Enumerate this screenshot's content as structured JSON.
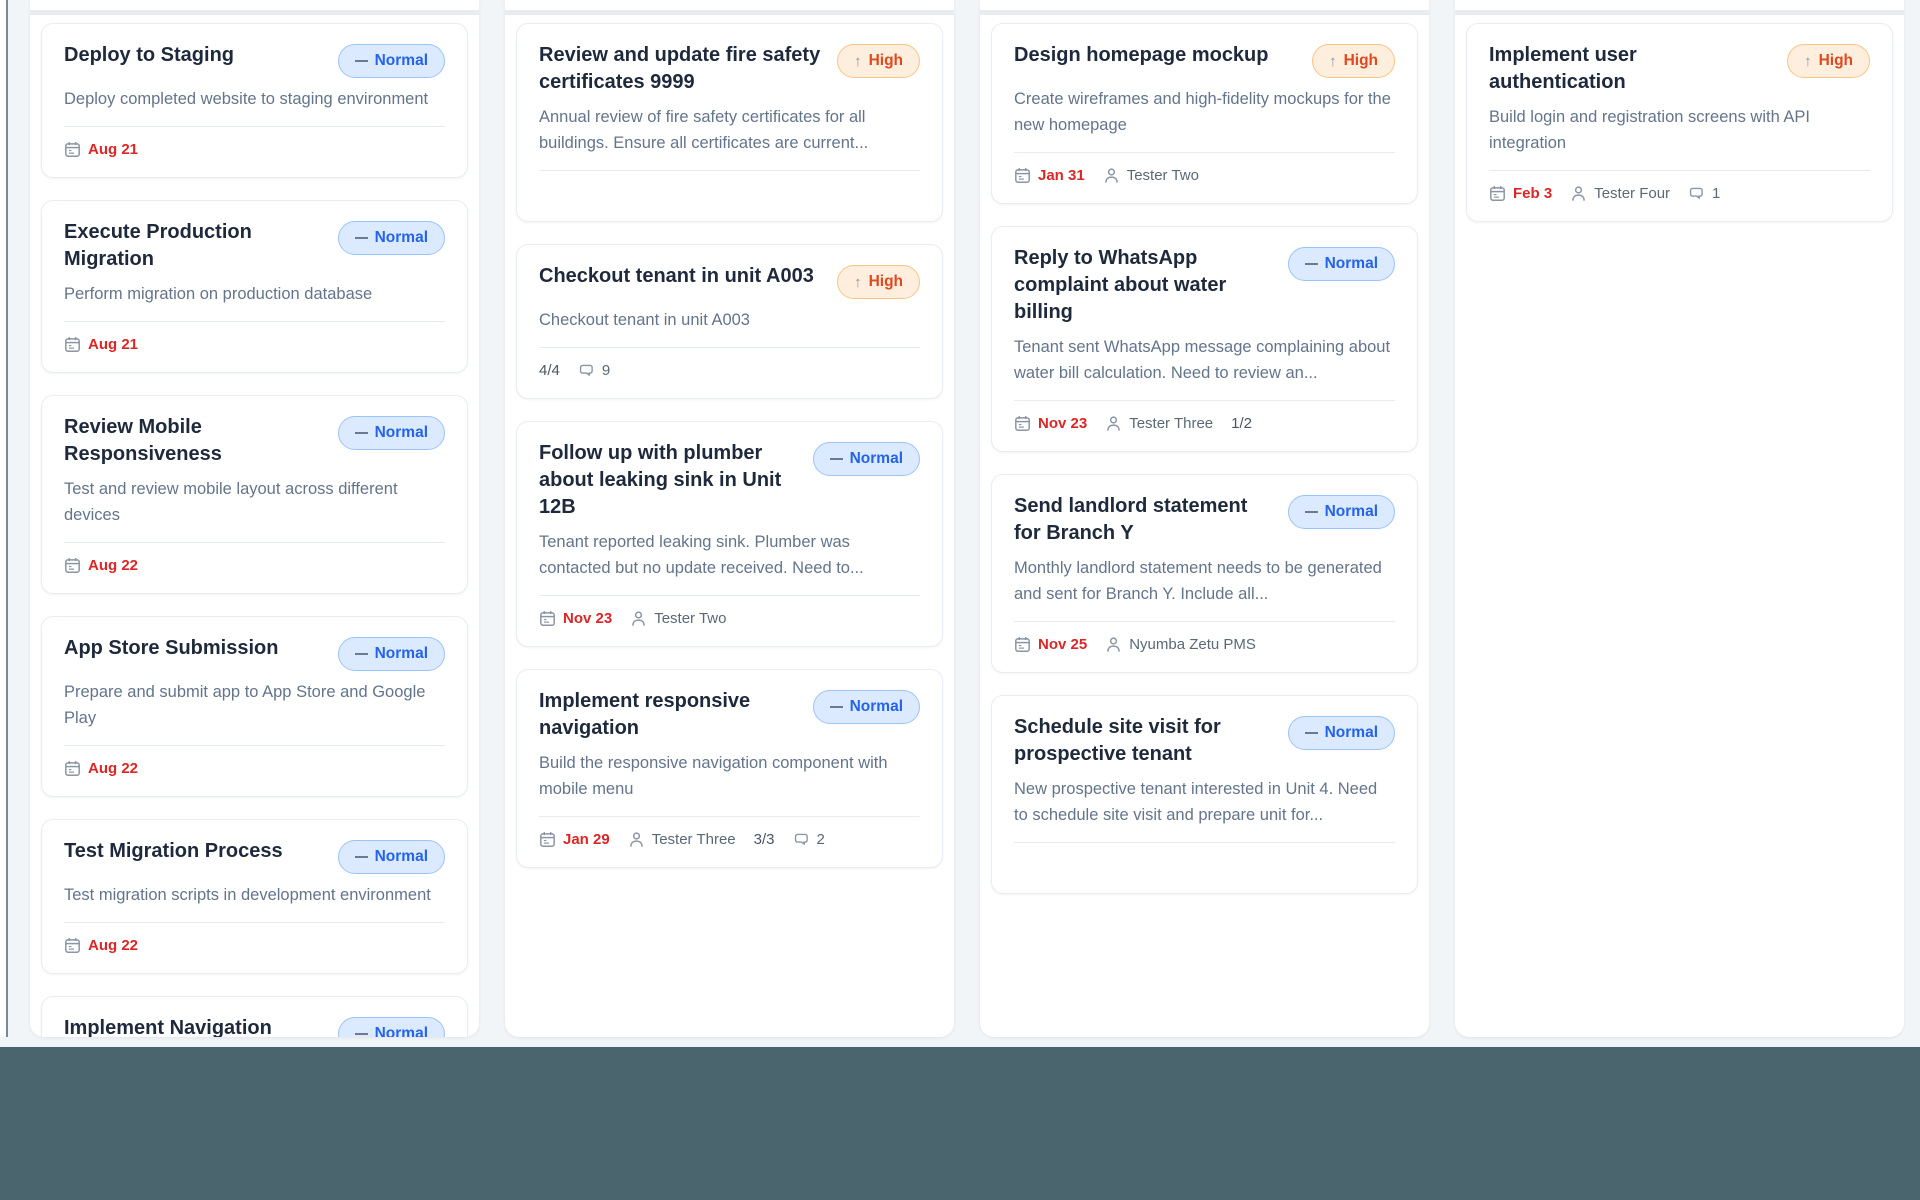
{
  "theme": {
    "board_bg": "#f2f5f8",
    "column_bg": "#ffffff",
    "bottom_band": "#4a656e",
    "due_date_color": "#dc2626",
    "normal_badge": {
      "bg": "#dbeafe",
      "border": "#9cc3f7",
      "text": "#2563eb"
    },
    "high_badge": {
      "bg": "#feeedd",
      "border": "#f9c583",
      "text": "#e0491f"
    }
  },
  "priorities": {
    "normal": {
      "label": "Normal",
      "icon": "dash-icon",
      "glyph": ""
    },
    "high": {
      "label": "High",
      "icon": "arrow-up-icon",
      "glyph": "↑"
    }
  },
  "columns": [
    {
      "cards": [
        {
          "title": "Deploy to Staging",
          "priority": "normal",
          "description": "Deploy completed website to staging environment",
          "due_date": "Aug 21"
        },
        {
          "title": "Execute Production Migration",
          "priority": "normal",
          "description": "Perform migration on production database",
          "due_date": "Aug 21"
        },
        {
          "title": "Review Mobile Responsiveness",
          "priority": "normal",
          "description": "Test and review mobile layout across different devices",
          "due_date": "Aug 22"
        },
        {
          "title": "App Store Submission",
          "priority": "normal",
          "description": "Prepare and submit app to App Store and Google Play",
          "due_date": "Aug 22"
        },
        {
          "title": "Test Migration Process",
          "priority": "normal",
          "description": "Test migration scripts in development environment",
          "due_date": "Aug 22"
        },
        {
          "title": "Implement Navigation",
          "priority": "normal",
          "cut": true
        }
      ]
    },
    {
      "cards": [
        {
          "title": "Review and update fire safety certificates 9999",
          "priority": "high",
          "description": "Annual review of fire safety certificates for all buildings. Ensure all certificates are current...",
          "empty_footer": true
        },
        {
          "title": "Checkout tenant in unit A003",
          "priority": "high",
          "description": "Checkout tenant in unit A003",
          "checklist": "4/4",
          "comments": "9"
        },
        {
          "title": "Follow up with plumber about leaking sink in Unit 12B",
          "priority": "normal",
          "description": "Tenant reported leaking sink. Plumber was contacted but no update received. Need to...",
          "due_date": "Nov 23",
          "assignee": "Tester Two"
        },
        {
          "title": "Implement responsive navigation",
          "priority": "normal",
          "description": "Build the responsive navigation component with mobile menu",
          "due_date": "Jan 29",
          "assignee": "Tester Three",
          "checklist": "3/3",
          "comments": "2"
        }
      ]
    },
    {
      "cards": [
        {
          "title": "Design homepage mockup",
          "priority": "high",
          "description": "Create wireframes and high-fidelity mockups for the new homepage",
          "due_date": "Jan 31",
          "assignee": "Tester Two"
        },
        {
          "title": "Reply to WhatsApp complaint about water billing",
          "priority": "normal",
          "description": "Tenant sent WhatsApp message complaining about water bill calculation. Need to review an...",
          "due_date": "Nov 23",
          "assignee": "Tester Three",
          "checklist": "1/2"
        },
        {
          "title": "Send landlord statement for Branch Y",
          "priority": "normal",
          "description": "Monthly landlord statement needs to be generated and sent for Branch Y. Include all...",
          "due_date": "Nov 25",
          "assignee": "Nyumba Zetu PMS"
        },
        {
          "title": "Schedule site visit for prospective tenant",
          "priority": "normal",
          "description": "New prospective tenant interested in Unit 4. Need to schedule site visit and prepare unit for...",
          "empty_footer": true
        }
      ]
    },
    {
      "cards": [
        {
          "title": "Implement user authentication",
          "priority": "high",
          "description": "Build login and registration screens with API integration",
          "due_date": "Feb 3",
          "assignee": "Tester Four",
          "comments": "1"
        }
      ]
    }
  ]
}
